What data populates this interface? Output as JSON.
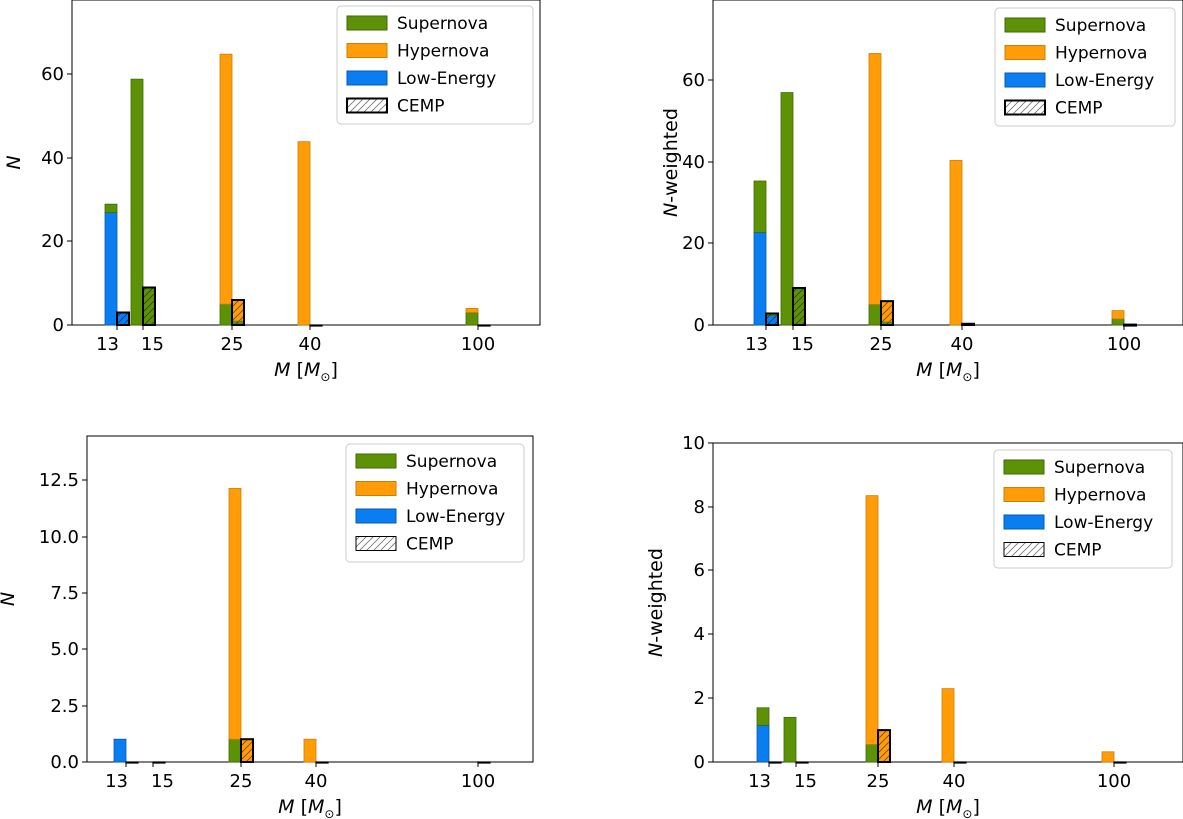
{
  "colors": {
    "supernova": "#5d9207",
    "supernova_edge": "#3f6a05",
    "hypernova": "#ff9c07",
    "hypernova_edge": "#d07d05",
    "low_energy": "#0a7df0",
    "low_energy_edge": "#0558b5"
  },
  "chart_data": [
    {
      "type": "bar",
      "stacked": true,
      "x_ticks": [
        "13",
        "15",
        "25",
        "40",
        "100"
      ],
      "ylim": [
        0,
        78
      ],
      "y_ticks": [
        "0",
        "20",
        "40",
        "60"
      ],
      "xlabel": {
        "var": "M",
        "pre": " [",
        "var2": "M",
        "sub": "⊙",
        "post": "]"
      },
      "ylabel": {
        "var": "N",
        "rest": ""
      },
      "legend": {
        "position": "top-right",
        "entries": [
          "Supernova",
          "Hypernova",
          "Low-Energy",
          "CEMP"
        ]
      },
      "groups": [
        {
          "mass": "13",
          "low_energy": 27,
          "supernova": 2,
          "hypernova": 0
        },
        {
          "mass": "15",
          "low_energy": 0,
          "supernova": 59,
          "hypernova": 0
        },
        {
          "mass": "25",
          "low_energy": 0,
          "supernova": 5,
          "hypernova": 60
        },
        {
          "mass": "40",
          "low_energy": 0,
          "supernova": 0,
          "hypernova": 44
        },
        {
          "mass": "100",
          "low_energy": 0,
          "supernova": 3,
          "hypernova": 1
        }
      ],
      "cemp": [
        {
          "mass": "13",
          "low_energy": 3,
          "supernova": 0,
          "hypernova": 0
        },
        {
          "mass": "15",
          "low_energy": 0,
          "supernova": 9,
          "hypernova": 0
        },
        {
          "mass": "25",
          "low_energy": 0,
          "supernova": 1,
          "hypernova": 5
        },
        {
          "mass": "40",
          "low_energy": 0,
          "supernova": 0,
          "hypernova": 0
        },
        {
          "mass": "100",
          "low_energy": 0,
          "supernova": 0,
          "hypernova": 0
        }
      ]
    },
    {
      "type": "bar",
      "stacked": true,
      "x_ticks": [
        "13",
        "15",
        "25",
        "40",
        "100"
      ],
      "ylim": [
        0,
        79
      ],
      "y_ticks": [
        "0",
        "20",
        "40",
        "60"
      ],
      "xlabel": {
        "var": "M",
        "pre": " [",
        "var2": "M",
        "sub": "⊙",
        "post": "]"
      },
      "ylabel": {
        "var": "N",
        "rest": "-weighted"
      },
      "legend": {
        "position": "top-right",
        "entries": [
          "Supernova",
          "Hypernova",
          "Low-Energy",
          "CEMP"
        ]
      },
      "groups": [
        {
          "mass": "13",
          "low_energy": 22.5,
          "supernova": 12.5,
          "hypernova": 0
        },
        {
          "mass": "15",
          "low_energy": 0,
          "supernova": 56.5,
          "hypernova": 0
        },
        {
          "mass": "25",
          "low_energy": 0,
          "supernova": 5,
          "hypernova": 61
        },
        {
          "mass": "40",
          "low_energy": 0,
          "supernova": 0,
          "hypernova": 40
        },
        {
          "mass": "100",
          "low_energy": 0,
          "supernova": 1.5,
          "hypernova": 2
        }
      ],
      "cemp": [
        {
          "mass": "13",
          "low_energy": 2.3,
          "supernova": 0.5,
          "hypernova": 0
        },
        {
          "mass": "15",
          "low_energy": 0,
          "supernova": 9,
          "hypernova": 0
        },
        {
          "mass": "25",
          "low_energy": 0,
          "supernova": 0.8,
          "hypernova": 5
        },
        {
          "mass": "40",
          "low_energy": 0,
          "supernova": 0,
          "hypernova": 0.3
        },
        {
          "mass": "100",
          "low_energy": 0,
          "supernova": 0,
          "hypernova": 0.1
        }
      ]
    },
    {
      "type": "bar",
      "stacked": true,
      "x_ticks": [
        "13",
        "15",
        "25",
        "40",
        "100"
      ],
      "ylim": [
        0,
        14.3
      ],
      "y_ticks": [
        "0.0",
        "2.5",
        "5.0",
        "7.5",
        "10.0",
        "12.5"
      ],
      "xlabel": {
        "var": "M",
        "pre": " [",
        "var2": "M",
        "sub": "⊙",
        "post": "]"
      },
      "ylabel": {
        "var": "N",
        "rest": ""
      },
      "legend": {
        "position": "top-right",
        "entries": [
          "Supernova",
          "Hypernova",
          "Low-Energy",
          "CEMP"
        ]
      },
      "groups": [
        {
          "mass": "13",
          "low_energy": 1,
          "supernova": 0,
          "hypernova": 0
        },
        {
          "mass": "15",
          "low_energy": 0,
          "supernova": 0,
          "hypernova": 0
        },
        {
          "mass": "25",
          "low_energy": 0,
          "supernova": 1,
          "hypernova": 11
        },
        {
          "mass": "40",
          "low_energy": 0,
          "supernova": 0,
          "hypernova": 1
        },
        {
          "mass": "100",
          "low_energy": 0,
          "supernova": 0,
          "hypernova": 0
        }
      ],
      "cemp": [
        {
          "mass": "13",
          "low_energy": 0,
          "supernova": 0,
          "hypernova": 0
        },
        {
          "mass": "15",
          "low_energy": 0,
          "supernova": 0,
          "hypernova": 0
        },
        {
          "mass": "25",
          "low_energy": 0,
          "supernova": 0,
          "hypernova": 1
        },
        {
          "mass": "40",
          "low_energy": 0,
          "supernova": 0,
          "hypernova": 0
        },
        {
          "mass": "100",
          "low_energy": 0,
          "supernova": 0,
          "hypernova": 0
        }
      ]
    },
    {
      "type": "bar",
      "stacked": true,
      "x_ticks": [
        "13",
        "15",
        "25",
        "40",
        "100"
      ],
      "ylim": [
        0,
        10
      ],
      "y_ticks": [
        "0",
        "2",
        "4",
        "6",
        "8",
        "10"
      ],
      "xlabel": {
        "var": "M",
        "pre": " [",
        "var2": "M",
        "sub": "⊙",
        "post": "]"
      },
      "ylabel": {
        "var": "N",
        "rest": "-weighted"
      },
      "legend": {
        "position": "top-right",
        "entries": [
          "Supernova",
          "Hypernova",
          "Low-Energy",
          "CEMP"
        ]
      },
      "groups": [
        {
          "mass": "13",
          "low_energy": 1.15,
          "supernova": 0.55,
          "hypernova": 0
        },
        {
          "mass": "15",
          "low_energy": 0,
          "supernova": 1.4,
          "hypernova": 0
        },
        {
          "mass": "25",
          "low_energy": 0,
          "supernova": 0.55,
          "hypernova": 7.8
        },
        {
          "mass": "40",
          "low_energy": 0,
          "supernova": 0,
          "hypernova": 2.3
        },
        {
          "mass": "100",
          "low_energy": 0,
          "supernova": 0,
          "hypernova": 0.32
        }
      ],
      "cemp": [
        {
          "mass": "13",
          "low_energy": 0,
          "supernova": 0,
          "hypernova": 0
        },
        {
          "mass": "15",
          "low_energy": 0,
          "supernova": 0,
          "hypernova": 0
        },
        {
          "mass": "25",
          "low_energy": 0,
          "supernova": 0,
          "hypernova": 1.0
        },
        {
          "mass": "40",
          "low_energy": 0,
          "supernova": 0,
          "hypernova": 0
        },
        {
          "mass": "100",
          "low_energy": 0,
          "supernova": 0,
          "hypernova": 0
        }
      ]
    }
  ]
}
